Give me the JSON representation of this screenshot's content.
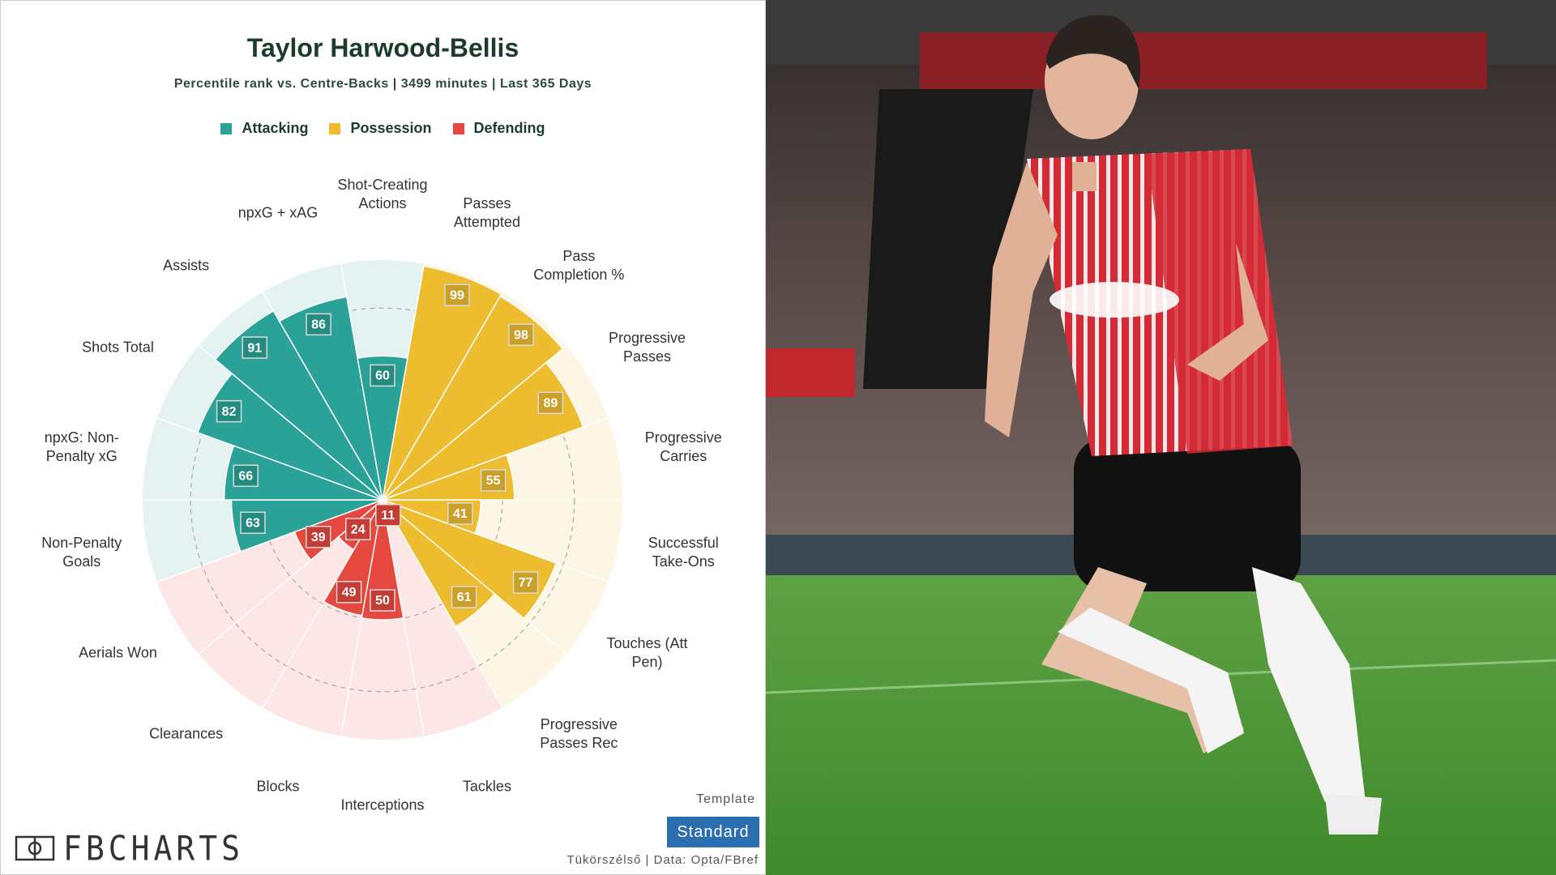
{
  "chart_data": {
    "type": "pizza",
    "title": "Taylor Harwood-Bellis",
    "subtitle": "Percentile rank vs. Centre-Backs | 3499 minutes | Last 365 Days",
    "rlim": [
      0,
      100
    ],
    "rticks": [
      50,
      80
    ],
    "series": [
      {
        "name": "Possession",
        "color": "#eebc2f",
        "categories": [
          "Passes Attempted",
          "Pass Completion %",
          "Progressive Passes",
          "Progressive Carries",
          "Successful Take-Ons",
          "Touches (Att Pen)",
          "Progressive Passes Rec"
        ],
        "values": [
          99,
          98,
          89,
          55,
          41,
          77,
          61
        ]
      },
      {
        "name": "Defending",
        "color": "#e5483f",
        "categories": [
          "Tackles",
          "Interceptions",
          "Blocks",
          "Clearances",
          "Aerials Won"
        ],
        "values": [
          11,
          50,
          49,
          24,
          39
        ]
      },
      {
        "name": "Attacking",
        "color": "#2ba297",
        "categories": [
          "Non-Penalty Goals",
          "npxG: Non-Penalty xG",
          "Shots Total",
          "Assists",
          "npxG + xAG",
          "Shot-Creating Actions"
        ],
        "values": [
          63,
          66,
          82,
          91,
          86,
          60
        ]
      }
    ]
  },
  "footer": {
    "logo": "FBCHARTS",
    "template_label": "Template",
    "template_button": "Standard",
    "credit": "Tükörszélső | Data: Opta/FBref"
  }
}
